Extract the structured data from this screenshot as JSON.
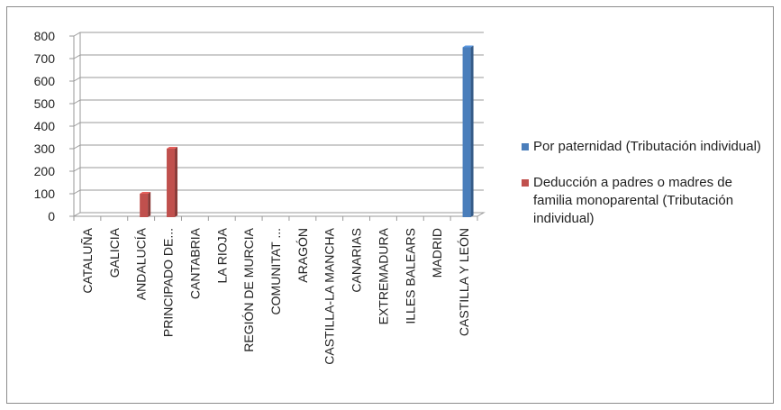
{
  "chart_data": {
    "type": "bar",
    "title": "",
    "xlabel": "",
    "ylabel": "",
    "ylim": [
      0,
      800
    ],
    "yticks": [
      0,
      100,
      200,
      300,
      400,
      500,
      600,
      700,
      800
    ],
    "grid": true,
    "legend_position": "right",
    "categories": [
      "CATALUÑA",
      "GALICIA",
      "ANDALUCÍA",
      "PRINCIPADO DE...",
      "CANTABRIA",
      "LA RIOJA",
      "REGIÓN DE MURCIA",
      "COMUNITAT ...",
      "ARAGÓN",
      "CASTILLA-LA MANCHA",
      "CANARIAS",
      "EXTREMADURA",
      "ILLES BALEARS",
      "MADRID",
      "CASTILLA Y LEÓN"
    ],
    "series": [
      {
        "name": "Por paternidad (Tributación individual)",
        "color": "#4a7ebb",
        "values": [
          0,
          0,
          0,
          0,
          0,
          0,
          0,
          0,
          0,
          0,
          0,
          0,
          0,
          0,
          750
        ]
      },
      {
        "name": "Deducción a padres o madres de familia monoparental (Tributación individual)",
        "color": "#c0504d",
        "values": [
          0,
          0,
          100,
          300,
          0,
          0,
          0,
          0,
          0,
          0,
          0,
          0,
          0,
          0,
          0
        ]
      }
    ]
  }
}
